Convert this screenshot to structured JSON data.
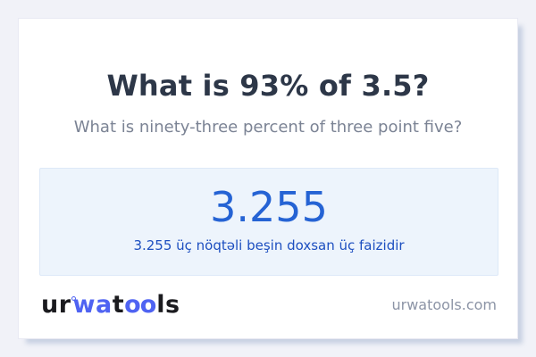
{
  "page": {
    "background_color": "#f1f2f8",
    "card_color": "#ffffff"
  },
  "question": {
    "title": "What is 93% of 3.5?",
    "subtitle": "What is ninety-three percent of three point five?"
  },
  "result": {
    "value": "3.255",
    "description": "3.255 üç nöqtəli beşin doxsan üç faizidir",
    "box_background": "#edf4fc",
    "box_border": "#dde9f8",
    "value_color": "#2563d4",
    "description_color": "#1d4fc0"
  },
  "footer": {
    "logo": {
      "part1": "ur",
      "part2": "wa",
      "part3": "t",
      "part4": "oo",
      "part5": "ls",
      "accent_color": "#4f63f2",
      "dark_color": "#1b1b1f"
    },
    "website": "urwatools.com"
  }
}
